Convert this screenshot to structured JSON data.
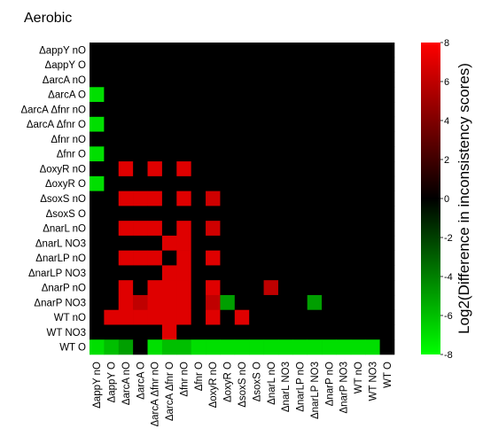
{
  "chart_data": {
    "type": "heatmap",
    "title": "Aerobic",
    "colorbar_label": "Log2(Difference in inconsistency scores)",
    "colorbar_ticks": [
      8,
      6,
      4,
      2,
      0,
      -2,
      -4,
      -6,
      -8
    ],
    "value_range": [
      -8,
      8
    ],
    "colors": {
      "negative": "#00ff00",
      "zero": "#000000",
      "positive": "#ff0000"
    },
    "rows": [
      "ΔappY nO",
      "ΔappY O",
      "ΔarcA nO",
      "ΔarcA O",
      "ΔarcA Δfnr nO",
      "ΔarcA Δfnr O",
      "Δfnr nO",
      "Δfnr O",
      "ΔoxyR nO",
      "ΔoxyR O",
      "ΔsoxS nO",
      "ΔsoxS O",
      "ΔnarL nO",
      "ΔnarL NO3",
      "ΔnarLP nO",
      "ΔnarLP NO3",
      "ΔnarP nO",
      "ΔnarP NO3",
      "WT nO",
      "WT NO3",
      "WT O"
    ],
    "columns": [
      "ΔappY nO",
      "ΔappY O",
      "ΔarcA nO",
      "ΔarcA O",
      "ΔarcA Δfnr nO",
      "ΔarcA Δfnr O",
      "Δfnr nO",
      "Δfnr O",
      "ΔoxyR nO",
      "ΔoxyR O",
      "ΔsoxS nO",
      "ΔsoxS O",
      "ΔnarL nO",
      "ΔnarL NO3",
      "ΔnarLP nO",
      "ΔnarLP NO3",
      "ΔnarP nO",
      "ΔnarP NO3",
      "WT nO",
      "WT NO3",
      "WT O"
    ],
    "values": [
      [
        0,
        0,
        0,
        0,
        0,
        0,
        0,
        0,
        0,
        0,
        0,
        0,
        0,
        0,
        0,
        0,
        0,
        0,
        0,
        0,
        0
      ],
      [
        0,
        0,
        0,
        0,
        0,
        0,
        0,
        0,
        0,
        0,
        0,
        0,
        0,
        0,
        0,
        0,
        0,
        0,
        0,
        0,
        0
      ],
      [
        0,
        0,
        0,
        0,
        0,
        0,
        0,
        0,
        0,
        0,
        0,
        0,
        0,
        0,
        0,
        0,
        0,
        0,
        0,
        0,
        0
      ],
      [
        -7,
        0,
        0,
        0,
        0,
        0,
        0,
        0,
        0,
        0,
        0,
        0,
        0,
        0,
        0,
        0,
        0,
        0,
        0,
        0,
        0
      ],
      [
        0,
        0,
        0,
        0,
        0,
        0,
        0,
        0,
        0,
        0,
        0,
        0,
        0,
        0,
        0,
        0,
        0,
        0,
        0,
        0,
        0
      ],
      [
        -7,
        0,
        0,
        0,
        0,
        0,
        0,
        0,
        0,
        0,
        0,
        0,
        0,
        0,
        0,
        0,
        0,
        0,
        0,
        0,
        0
      ],
      [
        0,
        0,
        0,
        0,
        0,
        0,
        0,
        0,
        0,
        0,
        0,
        0,
        0,
        0,
        0,
        0,
        0,
        0,
        0,
        0,
        0
      ],
      [
        -7,
        0,
        0,
        0,
        0,
        0,
        0,
        0,
        0,
        0,
        0,
        0,
        0,
        0,
        0,
        0,
        0,
        0,
        0,
        0,
        0
      ],
      [
        0,
        0,
        7,
        0,
        7,
        0,
        7,
        0,
        0,
        0,
        0,
        0,
        0,
        0,
        0,
        0,
        0,
        0,
        0,
        0,
        0
      ],
      [
        -7,
        0,
        0,
        0,
        0,
        0,
        0,
        0,
        0,
        0,
        0,
        0,
        0,
        0,
        0,
        0,
        0,
        0,
        0,
        0,
        0
      ],
      [
        0,
        0,
        7,
        7,
        7,
        0,
        7,
        0,
        6.5,
        0,
        0,
        0,
        0,
        0,
        0,
        0,
        0,
        0,
        0,
        0,
        0
      ],
      [
        0,
        0,
        0,
        0,
        0,
        0,
        0,
        0,
        0,
        0,
        0,
        0,
        0,
        0,
        0,
        0,
        0,
        0,
        0,
        0,
        0
      ],
      [
        0,
        0,
        7,
        7,
        7,
        0,
        7,
        0,
        6.5,
        0,
        0,
        0,
        0,
        0,
        0,
        0,
        0,
        0,
        0,
        0,
        0
      ],
      [
        0,
        0,
        0,
        0,
        0,
        7,
        7,
        0,
        0,
        0,
        0,
        0,
        0,
        0,
        0,
        0,
        0,
        0,
        0,
        0,
        0
      ],
      [
        0,
        0,
        7,
        7,
        7,
        0,
        7,
        0,
        7,
        0,
        0,
        0,
        0,
        0,
        0,
        0,
        0,
        0,
        0,
        0,
        0
      ],
      [
        0,
        0,
        0,
        0,
        0,
        7,
        7,
        0,
        0,
        0,
        0,
        0,
        0,
        0,
        0,
        0,
        0,
        0,
        0,
        0,
        0
      ],
      [
        0,
        0,
        7,
        0,
        7,
        7,
        7,
        0,
        7,
        0,
        0,
        0,
        6,
        0,
        0,
        0,
        0,
        0,
        0,
        0,
        0
      ],
      [
        0,
        0,
        7,
        6,
        7,
        7,
        7,
        0,
        6,
        -5,
        0,
        0,
        0,
        0,
        0,
        -5,
        0,
        0,
        0,
        0,
        0
      ],
      [
        0,
        7,
        7,
        7,
        7,
        7,
        7,
        0,
        7,
        0,
        7,
        0,
        0,
        0,
        0,
        0,
        0,
        0,
        0,
        0,
        0
      ],
      [
        0,
        0,
        0,
        0,
        0,
        7,
        0,
        0,
        0,
        0,
        0,
        0,
        0,
        0,
        0,
        0,
        0,
        0,
        0,
        0,
        0
      ],
      [
        -7,
        -6,
        -5,
        0,
        -7,
        -6,
        -6,
        -7,
        -7,
        -7,
        -7,
        -7,
        -7,
        -7,
        -7,
        -7,
        -7,
        -7,
        -7,
        -7,
        0
      ]
    ]
  }
}
